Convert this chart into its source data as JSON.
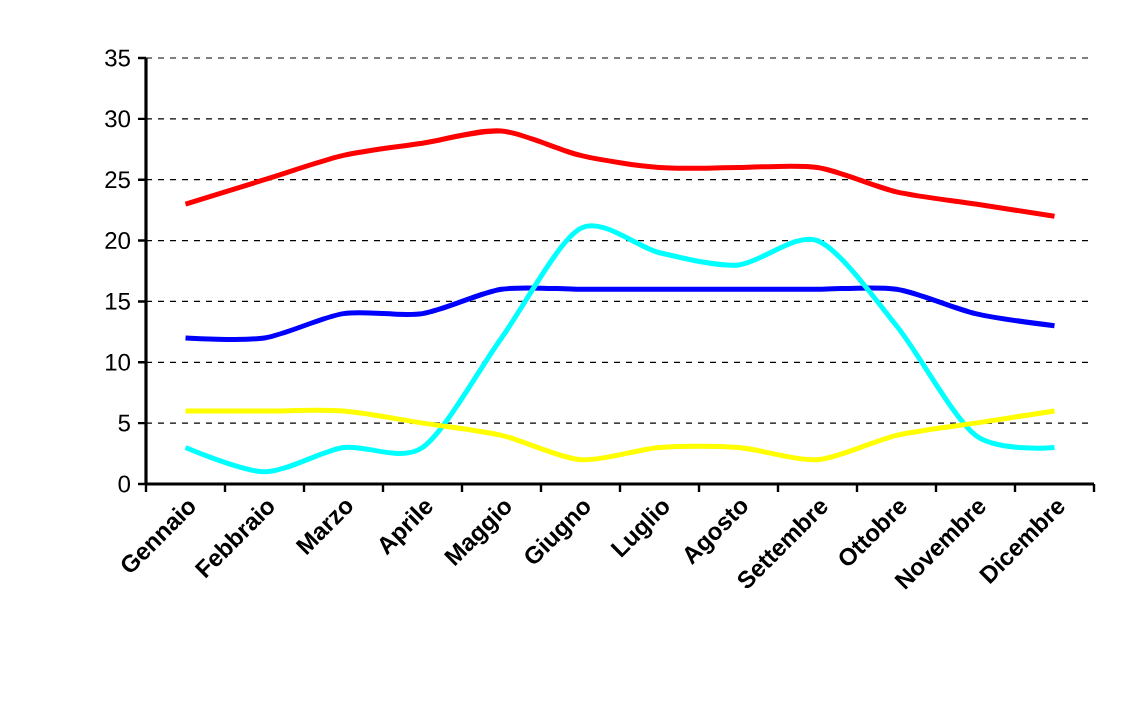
{
  "chart_data": {
    "type": "line",
    "categories": [
      "Gennaio",
      "Febbraio",
      "Marzo",
      "Aprile",
      "Maggio",
      "Giugno",
      "Luglio",
      "Agosto",
      "Settembre",
      "Ottobre",
      "Novembre",
      "Dicembre"
    ],
    "series": [
      {
        "color": "#ff0000",
        "values": [
          23,
          25,
          27,
          28,
          29,
          27,
          26,
          26,
          26,
          24,
          23,
          22
        ]
      },
      {
        "color": "#0000ff",
        "values": [
          12,
          12,
          14,
          14,
          16,
          16,
          16,
          16,
          16,
          16,
          14,
          13
        ]
      },
      {
        "color": "#00ffff",
        "values": [
          3,
          1,
          3,
          3,
          12,
          21,
          19,
          18,
          20,
          13,
          4,
          3
        ]
      },
      {
        "color": "#ffff00",
        "values": [
          6,
          6,
          6,
          5,
          4,
          2,
          3,
          3,
          2,
          4,
          5,
          6
        ]
      }
    ],
    "ylim": [
      0,
      35
    ],
    "yticks": [
      0,
      5,
      10,
      15,
      20,
      25,
      30,
      35
    ],
    "grid": "y",
    "marker": "none",
    "line_style": "solid"
  }
}
